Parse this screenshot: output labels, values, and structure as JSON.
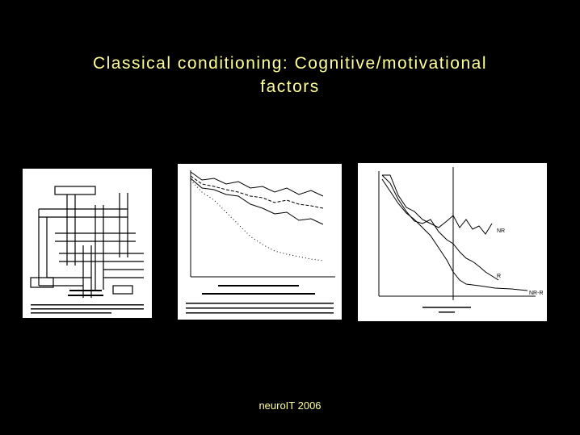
{
  "title": {
    "line1": "Classical conditioning: Cognitive/motivational",
    "line2": "factors"
  },
  "figures": {
    "curves2": {
      "labels": {
        "nr": "NR",
        "r": "R",
        "nr_r": "NR-R"
      }
    }
  },
  "footer": {
    "text": "neuroIT 2006"
  },
  "colors": {
    "background": "#000000",
    "text": "#ffff99"
  }
}
